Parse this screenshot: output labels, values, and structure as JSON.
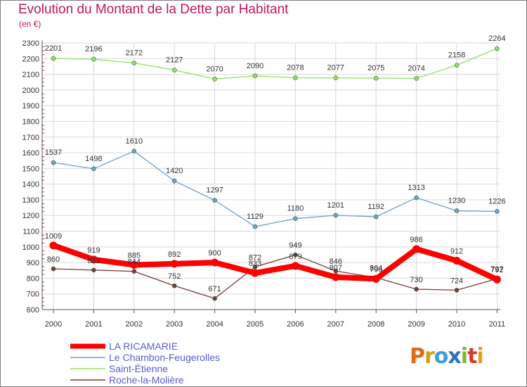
{
  "header": {
    "title": "Evolution du Montant de la Dette par Habitant",
    "unit": "(en €)"
  },
  "logo": {
    "letters": [
      "P",
      "r",
      "o",
      "x",
      "i",
      "t",
      "i"
    ],
    "colors": [
      "#e06a1a",
      "#d4a017",
      "#3c9bd8",
      "#2c70c0",
      "#7cb92b",
      "#d53a2a",
      "#e89b1a"
    ]
  },
  "colors": {
    "la_ricamarie": "#ff0000",
    "chambon": "#6f9fcf",
    "saint_etienne": "#99dd66",
    "roche": "#7a3a3a",
    "title": "#c0165e",
    "legend_text": "#5b5bd6",
    "grid": "#d8d8d8"
  },
  "chart_data": {
    "type": "line",
    "title": "Evolution du Montant de la Dette par Habitant",
    "ylabel": "(en €)",
    "xlabel": "",
    "ylim": [
      600,
      2300
    ],
    "yticks": [
      600,
      700,
      800,
      900,
      1000,
      1100,
      1200,
      1300,
      1400,
      1500,
      1600,
      1700,
      1800,
      1900,
      2000,
      2100,
      2200,
      2300
    ],
    "categories": [
      "2000",
      "2001",
      "2002",
      "2003",
      "2004",
      "2005",
      "2006",
      "2007",
      "2008",
      "2009",
      "2010",
      "2011"
    ],
    "grid": true,
    "legend_position": "bottom-left",
    "series": [
      {
        "name": "LA RICAMARIE",
        "key": "la_ricamarie",
        "values": [
          1009,
          919,
          885,
          892,
          900,
          833,
          879,
          807,
          796,
          986,
          912,
          792
        ]
      },
      {
        "name": "Le Chambon-Feugerolles",
        "key": "chambon",
        "values": [
          1537,
          1498,
          1610,
          1420,
          1297,
          1129,
          1180,
          1201,
          1192,
          1313,
          1230,
          1226
        ]
      },
      {
        "name": "Saint-Étienne",
        "key": "saint_etienne",
        "values": [
          2201,
          2196,
          2172,
          2127,
          2070,
          2090,
          2078,
          2077,
          2075,
          2074,
          2158,
          2264
        ]
      },
      {
        "name": "Roche-la-Molière",
        "key": "roche",
        "values": [
          860,
          852,
          844,
          752,
          671,
          872,
          949,
          846,
          804,
          730,
          724,
          797
        ]
      }
    ]
  }
}
